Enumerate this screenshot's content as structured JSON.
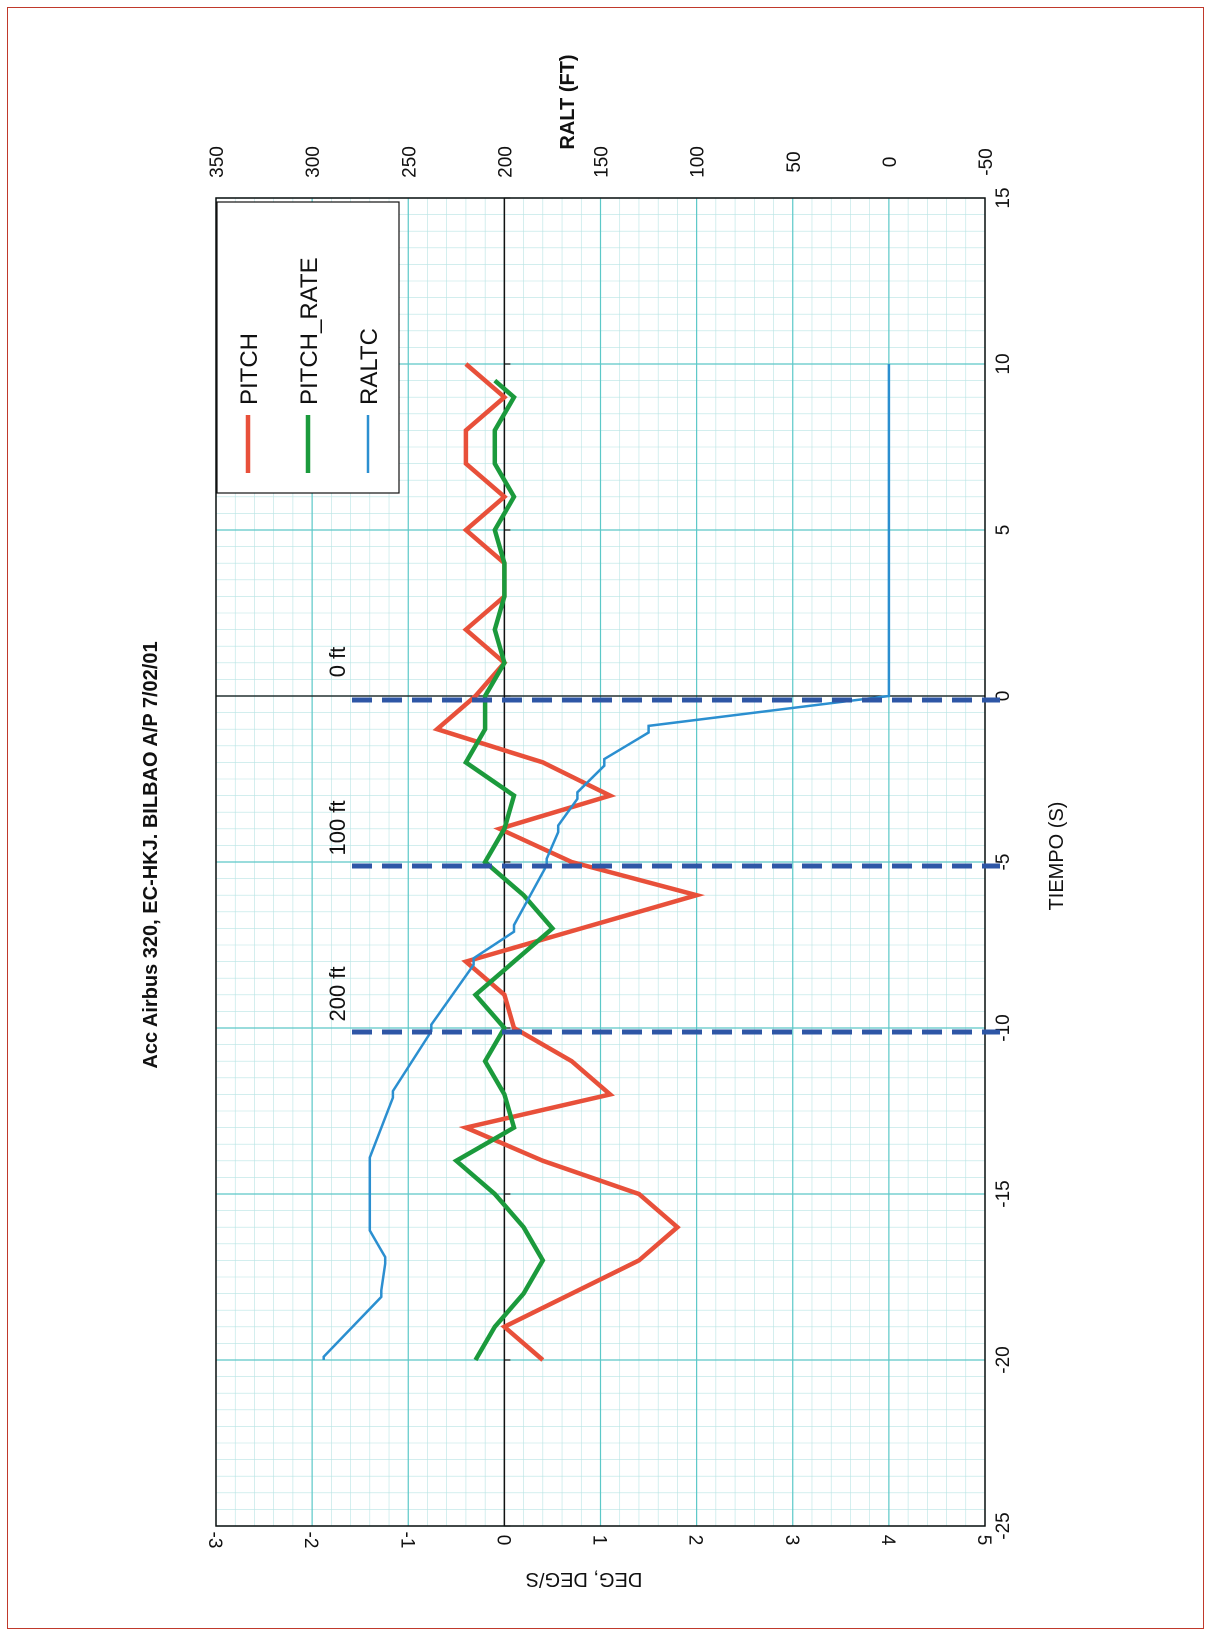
{
  "chart_data": {
    "type": "line",
    "title": "Acc Airbus 320, EC-HKJ.  BILBAO A/P 7/02/01",
    "xlabel": "TIEMPO (S)",
    "ylabel": "DEG,  DEG/S",
    "y2label": "RALT (FT)",
    "xlim": [
      -25,
      15
    ],
    "ylim": [
      -3,
      5
    ],
    "y2lim": [
      -50,
      350
    ],
    "x_ticks": [
      -25,
      -20,
      -15,
      -10,
      -5,
      0,
      5,
      10,
      15
    ],
    "y_ticks": [
      -3,
      -2,
      -1,
      0,
      1,
      2,
      3,
      4,
      5
    ],
    "y2_ticks": [
      -50,
      0,
      50,
      100,
      150,
      200,
      250,
      300,
      350
    ],
    "x_tick_labels": [
      "-25",
      "-20",
      "-15",
      "-10",
      "-5",
      "0",
      "5",
      "10",
      "15"
    ],
    "y_tick_labels": [
      "-3",
      "-2",
      "-1",
      "0",
      "1",
      "2",
      "3",
      "4",
      "5"
    ],
    "y2_tick_labels": [
      "-50",
      "0",
      "50",
      "100",
      "150",
      "200",
      "250",
      "300",
      "350"
    ],
    "grid": true,
    "legend_position": "top-right",
    "rotation": "chart is drawn rotated 90 degrees counter-clockwise on the page",
    "series": [
      {
        "name": "PITCH",
        "axis": "left",
        "color": "#e8503a",
        "x": [
          -20,
          -19,
          -17,
          -16,
          -15,
          -14,
          -13,
          -12,
          -11,
          -10,
          -9,
          -8,
          -7,
          -6,
          -5,
          -4,
          -3,
          -2,
          -1,
          0,
          1,
          2,
          3,
          4,
          5,
          6,
          7,
          8,
          9,
          10
        ],
        "values": [
          0.4,
          0.0,
          1.4,
          1.8,
          1.4,
          0.4,
          -0.4,
          1.1,
          0.7,
          0.1,
          0.0,
          -0.4,
          0.8,
          2.0,
          0.7,
          -0.05,
          1.1,
          0.4,
          -0.7,
          -0.3,
          0.0,
          -0.4,
          0.0,
          0.0,
          -0.4,
          0.0,
          -0.4,
          -0.4,
          0.0,
          -0.4
        ]
      },
      {
        "name": "PITCH_RATE",
        "axis": "left",
        "color": "#1b9a3c",
        "x": [
          -20,
          -19,
          -18,
          -17,
          -16,
          -15,
          -14,
          -13,
          -12,
          -11,
          -10,
          -9,
          -8,
          -7,
          -6,
          -5,
          -4,
          -3,
          -2,
          -1,
          0,
          1,
          2,
          3,
          4,
          5,
          6,
          7,
          8,
          9,
          9.5
        ],
        "values": [
          -0.3,
          -0.1,
          0.2,
          0.4,
          0.2,
          -0.1,
          -0.5,
          0.1,
          0.0,
          -0.2,
          0.0,
          -0.3,
          0.1,
          0.5,
          0.2,
          -0.2,
          0.0,
          0.1,
          -0.4,
          -0.2,
          -0.2,
          0.0,
          -0.1,
          0.0,
          0.0,
          -0.1,
          0.1,
          -0.1,
          -0.1,
          0.1,
          -0.1
        ]
      },
      {
        "name": "RALTC",
        "axis": "right",
        "color": "#2b8fd0",
        "x": [
          -20,
          -19.9,
          -18.1,
          -17.9,
          -17.1,
          -16.9,
          -16.1,
          -15.9,
          -14.1,
          -13.9,
          -12.1,
          -11.9,
          -10.1,
          -9.9,
          -8.1,
          -7.9,
          -7.1,
          -6.9,
          -5.1,
          -4.9,
          -4.1,
          -3.9,
          -3.1,
          -2.9,
          -2.1,
          -1.9,
          -1.1,
          -0.9,
          0,
          1,
          2,
          3,
          4,
          5,
          6,
          7,
          8,
          9,
          10
        ],
        "values": [
          294,
          294,
          264,
          264,
          262,
          262,
          270,
          270,
          270,
          270,
          258,
          258,
          238,
          238,
          216,
          216,
          195,
          195,
          178,
          178,
          172,
          172,
          162,
          162,
          148,
          148,
          125,
          125,
          0,
          0,
          0,
          0,
          0,
          0,
          0,
          0,
          0,
          0,
          0
        ]
      }
    ],
    "markers": [
      {
        "x": -10,
        "label": "200 ft"
      },
      {
        "x": -5,
        "label": "100 ft"
      },
      {
        "x": 0,
        "label": "0 ft"
      }
    ]
  }
}
